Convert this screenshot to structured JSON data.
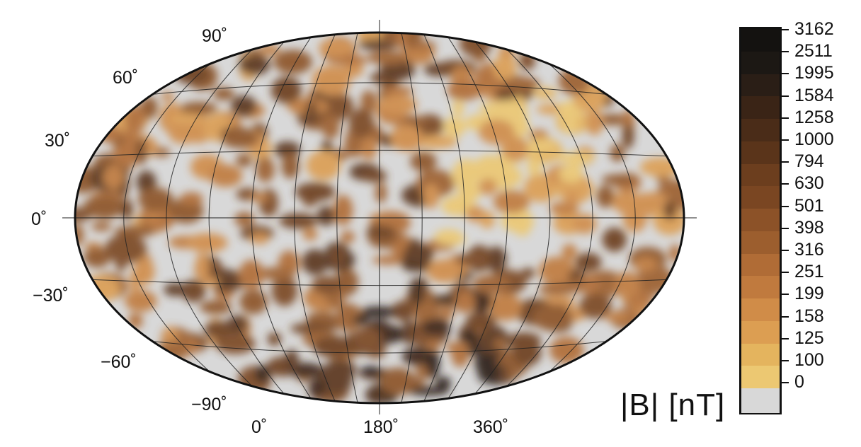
{
  "map": {
    "projection": "Robinson (equal-area, global)",
    "background": "hillshade relief of the planetary surface",
    "lat_labels": [
      "90˚",
      "60˚",
      "30˚",
      "0˚",
      "−30˚",
      "−60˚",
      "−90˚"
    ],
    "lon_labels": [
      "0˚",
      "180˚",
      "360˚"
    ],
    "relief_color": "#d8d8d8",
    "meridian_count": 13,
    "parallel_count": 5
  },
  "colorbar": {
    "unit_label": "|B| [nT]",
    "levels": [
      "3162",
      "2511",
      "1995",
      "1584",
      "1258",
      "1000",
      "794",
      "630",
      "501",
      "398",
      "316",
      "251",
      "199",
      "158",
      "125",
      "100",
      "0"
    ],
    "colors": [
      "#141210",
      "#1c1814",
      "#2a1e16",
      "#3a2416",
      "#4a2c18",
      "#5a341a",
      "#6c3e1e",
      "#7a4622",
      "#8c5228",
      "#9c5e2e",
      "#b06c36",
      "#c07a3e",
      "#d08c48",
      "#dc9e52",
      "#e4b45e",
      "#ecc872",
      "#d8d8d8"
    ]
  }
}
